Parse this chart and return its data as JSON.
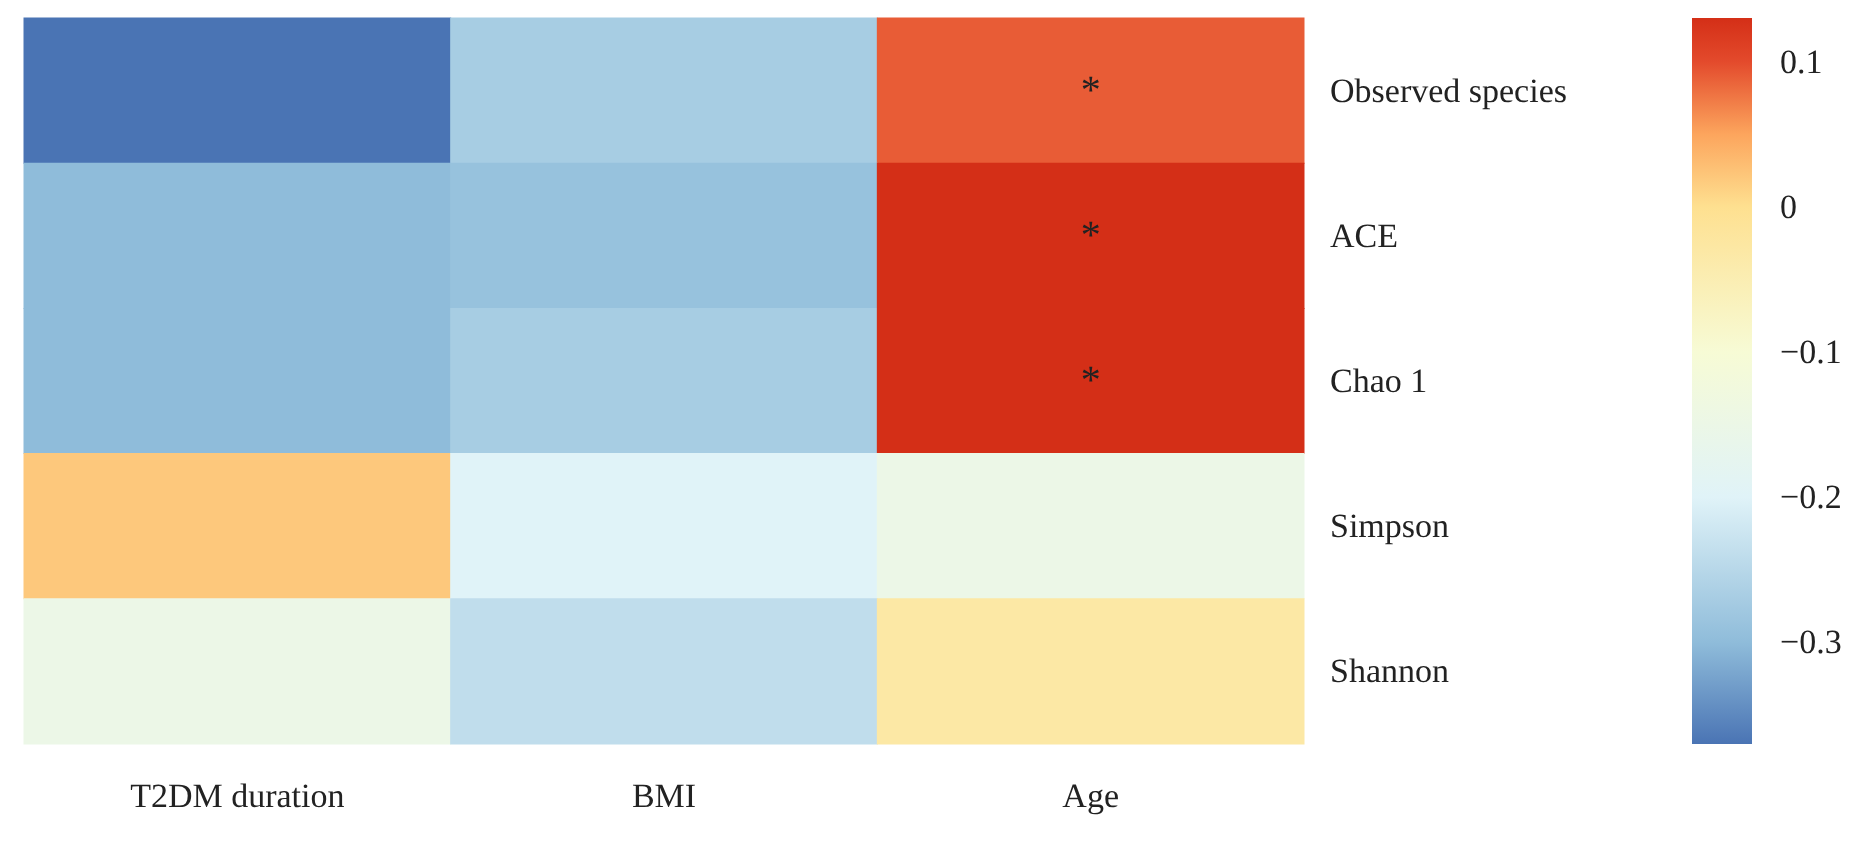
{
  "chart_data": {
    "type": "heatmap",
    "categories": [
      "T2DM duration",
      "BMI",
      "Age"
    ],
    "y_categories": [
      null,
      null,
      null,
      null,
      null
    ],
    "y2_categories": [
      "Observed species",
      "ACE",
      "Chao 1",
      "Simpson",
      "Shannon"
    ],
    "cells": [
      [
        -0.37,
        -0.27,
        0.09
      ],
      [
        -0.3,
        -0.29,
        0.13
      ],
      [
        -0.3,
        -0.27,
        0.13
      ],
      [
        0.02,
        -0.2,
        -0.15
      ],
      [
        -0.15,
        -0.24,
        -0.03
      ]
    ],
    "cell_labels": [
      [
        null,
        null,
        "*"
      ],
      [
        null,
        null,
        "*"
      ],
      [
        null,
        null,
        "*"
      ],
      [
        null,
        null,
        null
      ],
      [
        null,
        null,
        null
      ]
    ],
    "clim": [
      -0.37,
      0.13
    ],
    "cticks": [
      {
        "value": 0.1,
        "label": "0.1"
      },
      0,
      {
        "value": -0.1,
        "label": "−0.1"
      },
      {
        "value": -0.2,
        "label": "−0.2"
      },
      {
        "value": -0.3,
        "label": "−0.3"
      }
    ]
  }
}
